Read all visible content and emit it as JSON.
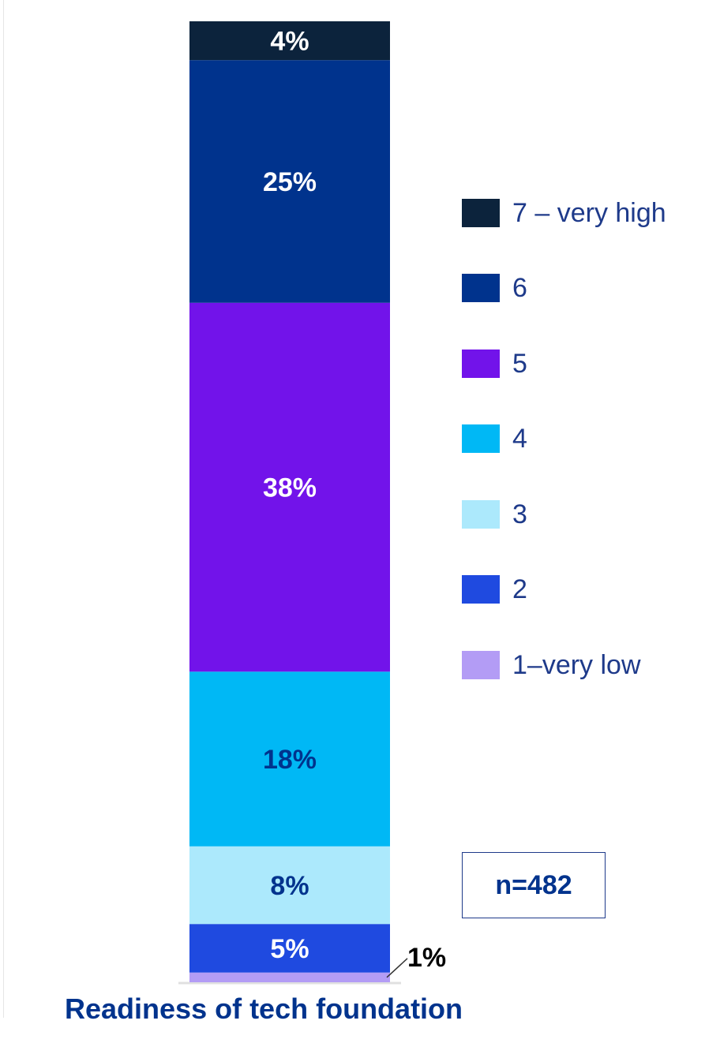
{
  "chart_data": {
    "type": "bar",
    "stacked": true,
    "categories": [
      "Readiness of tech foundation"
    ],
    "series": [
      {
        "name": "1–very low",
        "values": [
          1
        ],
        "label": "1%",
        "color": "#b39cf5",
        "label_color": "#000000"
      },
      {
        "name": "2",
        "values": [
          5
        ],
        "label": "5%",
        "color": "#1f4ae0",
        "label_color": "#ffffff"
      },
      {
        "name": "3",
        "values": [
          8
        ],
        "label": "8%",
        "color": "#ace9fc",
        "label_color": "#00338d"
      },
      {
        "name": "4",
        "values": [
          18
        ],
        "label": "18%",
        "color": "#00b8f5",
        "label_color": "#00338d"
      },
      {
        "name": "5",
        "values": [
          38
        ],
        "label": "38%",
        "color": "#7213ea",
        "label_color": "#ffffff"
      },
      {
        "name": "6",
        "values": [
          25
        ],
        "label": "25%",
        "color": "#00338d",
        "label_color": "#ffffff"
      },
      {
        "name": "7 – very high",
        "values": [
          4
        ],
        "label": "4%",
        "color": "#0c233c",
        "label_color": "#ffffff"
      }
    ],
    "title": "Readiness of tech foundation",
    "annotation": "n=482",
    "ylim": [
      0,
      99
    ],
    "grid": false,
    "legend_position": "right"
  },
  "legend": [
    {
      "label": "7 – very high",
      "color": "#0c233c"
    },
    {
      "label": "6",
      "color": "#00338d"
    },
    {
      "label": "5",
      "color": "#7213ea"
    },
    {
      "label": "4",
      "color": "#00b8f5"
    },
    {
      "label": "3",
      "color": "#ace9fc"
    },
    {
      "label": "2",
      "color": "#1f4ae0"
    },
    {
      "label": "1–very low",
      "color": "#b39cf5"
    }
  ]
}
